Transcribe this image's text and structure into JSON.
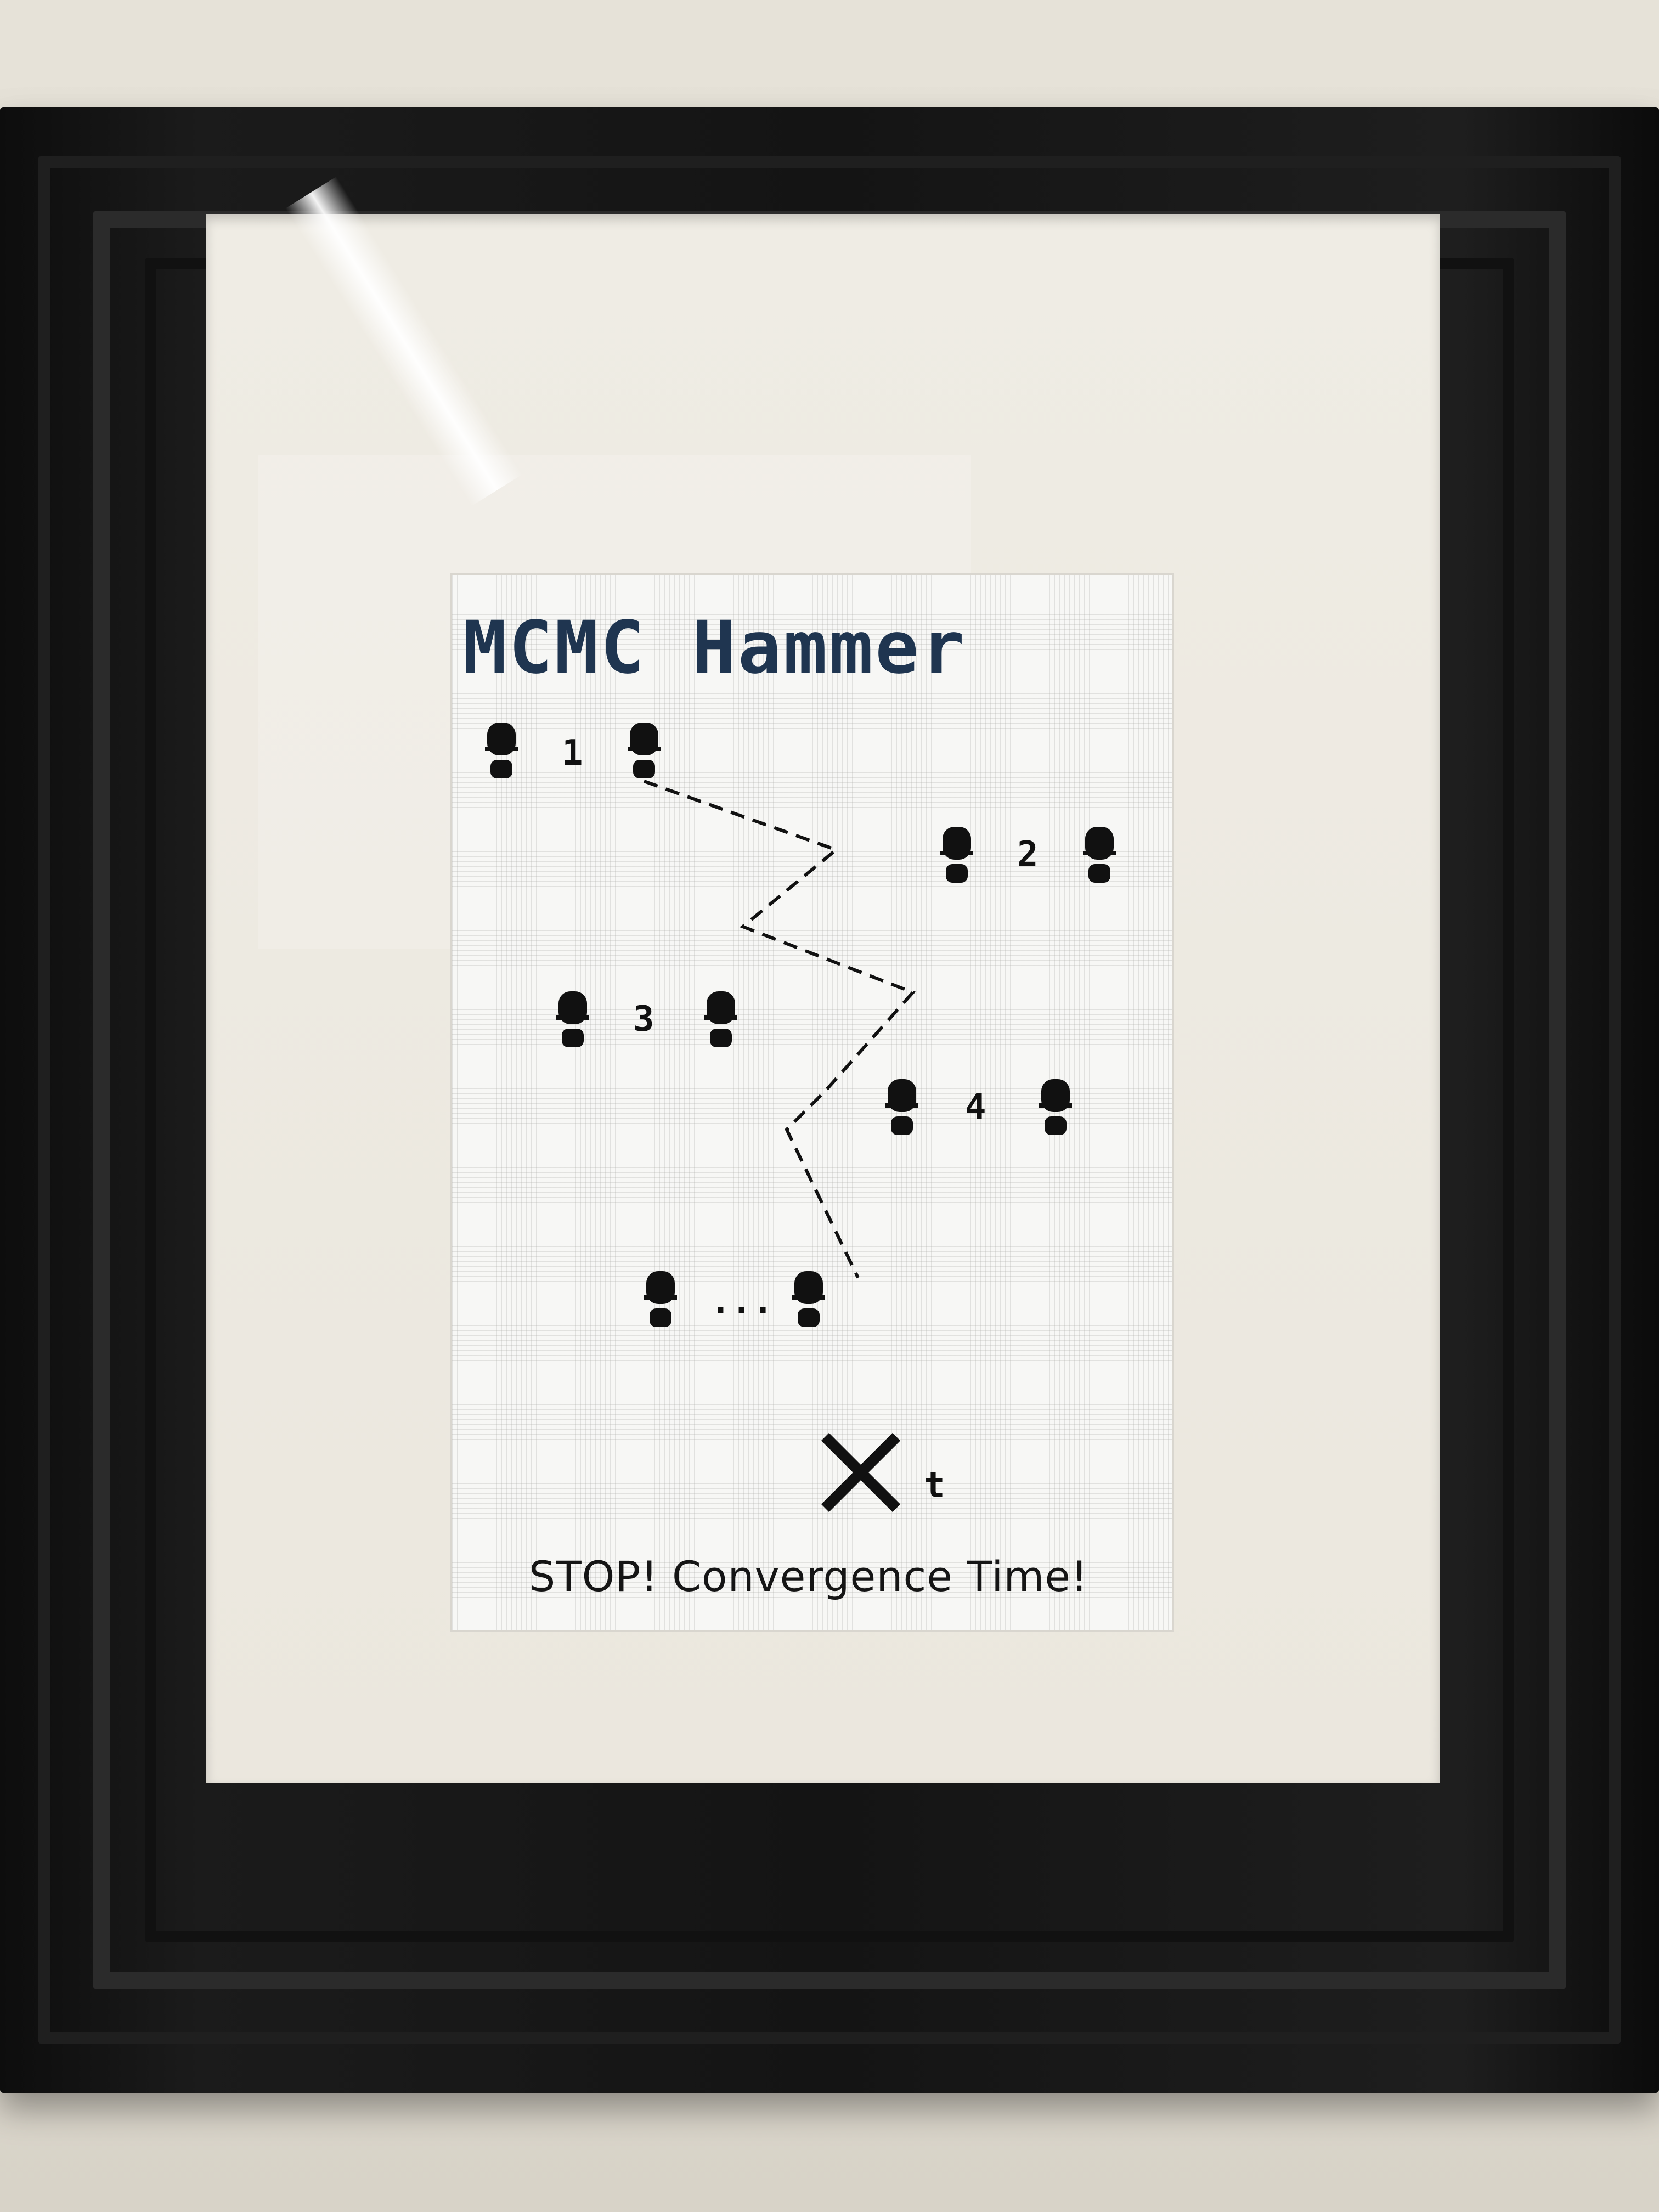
{
  "artwork": {
    "title": "MCMC Hammer",
    "steps": [
      {
        "label": "1"
      },
      {
        "label": "2"
      },
      {
        "label": "3"
      },
      {
        "label": "4"
      },
      {
        "label": "..."
      },
      {
        "label": "t"
      }
    ],
    "caption": "STOP! Convergence Time!"
  },
  "colors": {
    "frame": "#141414",
    "mat": "#ece8df",
    "fabric": "#f7f7f5",
    "title_thread": "#1f3550",
    "thread": "#111111"
  }
}
